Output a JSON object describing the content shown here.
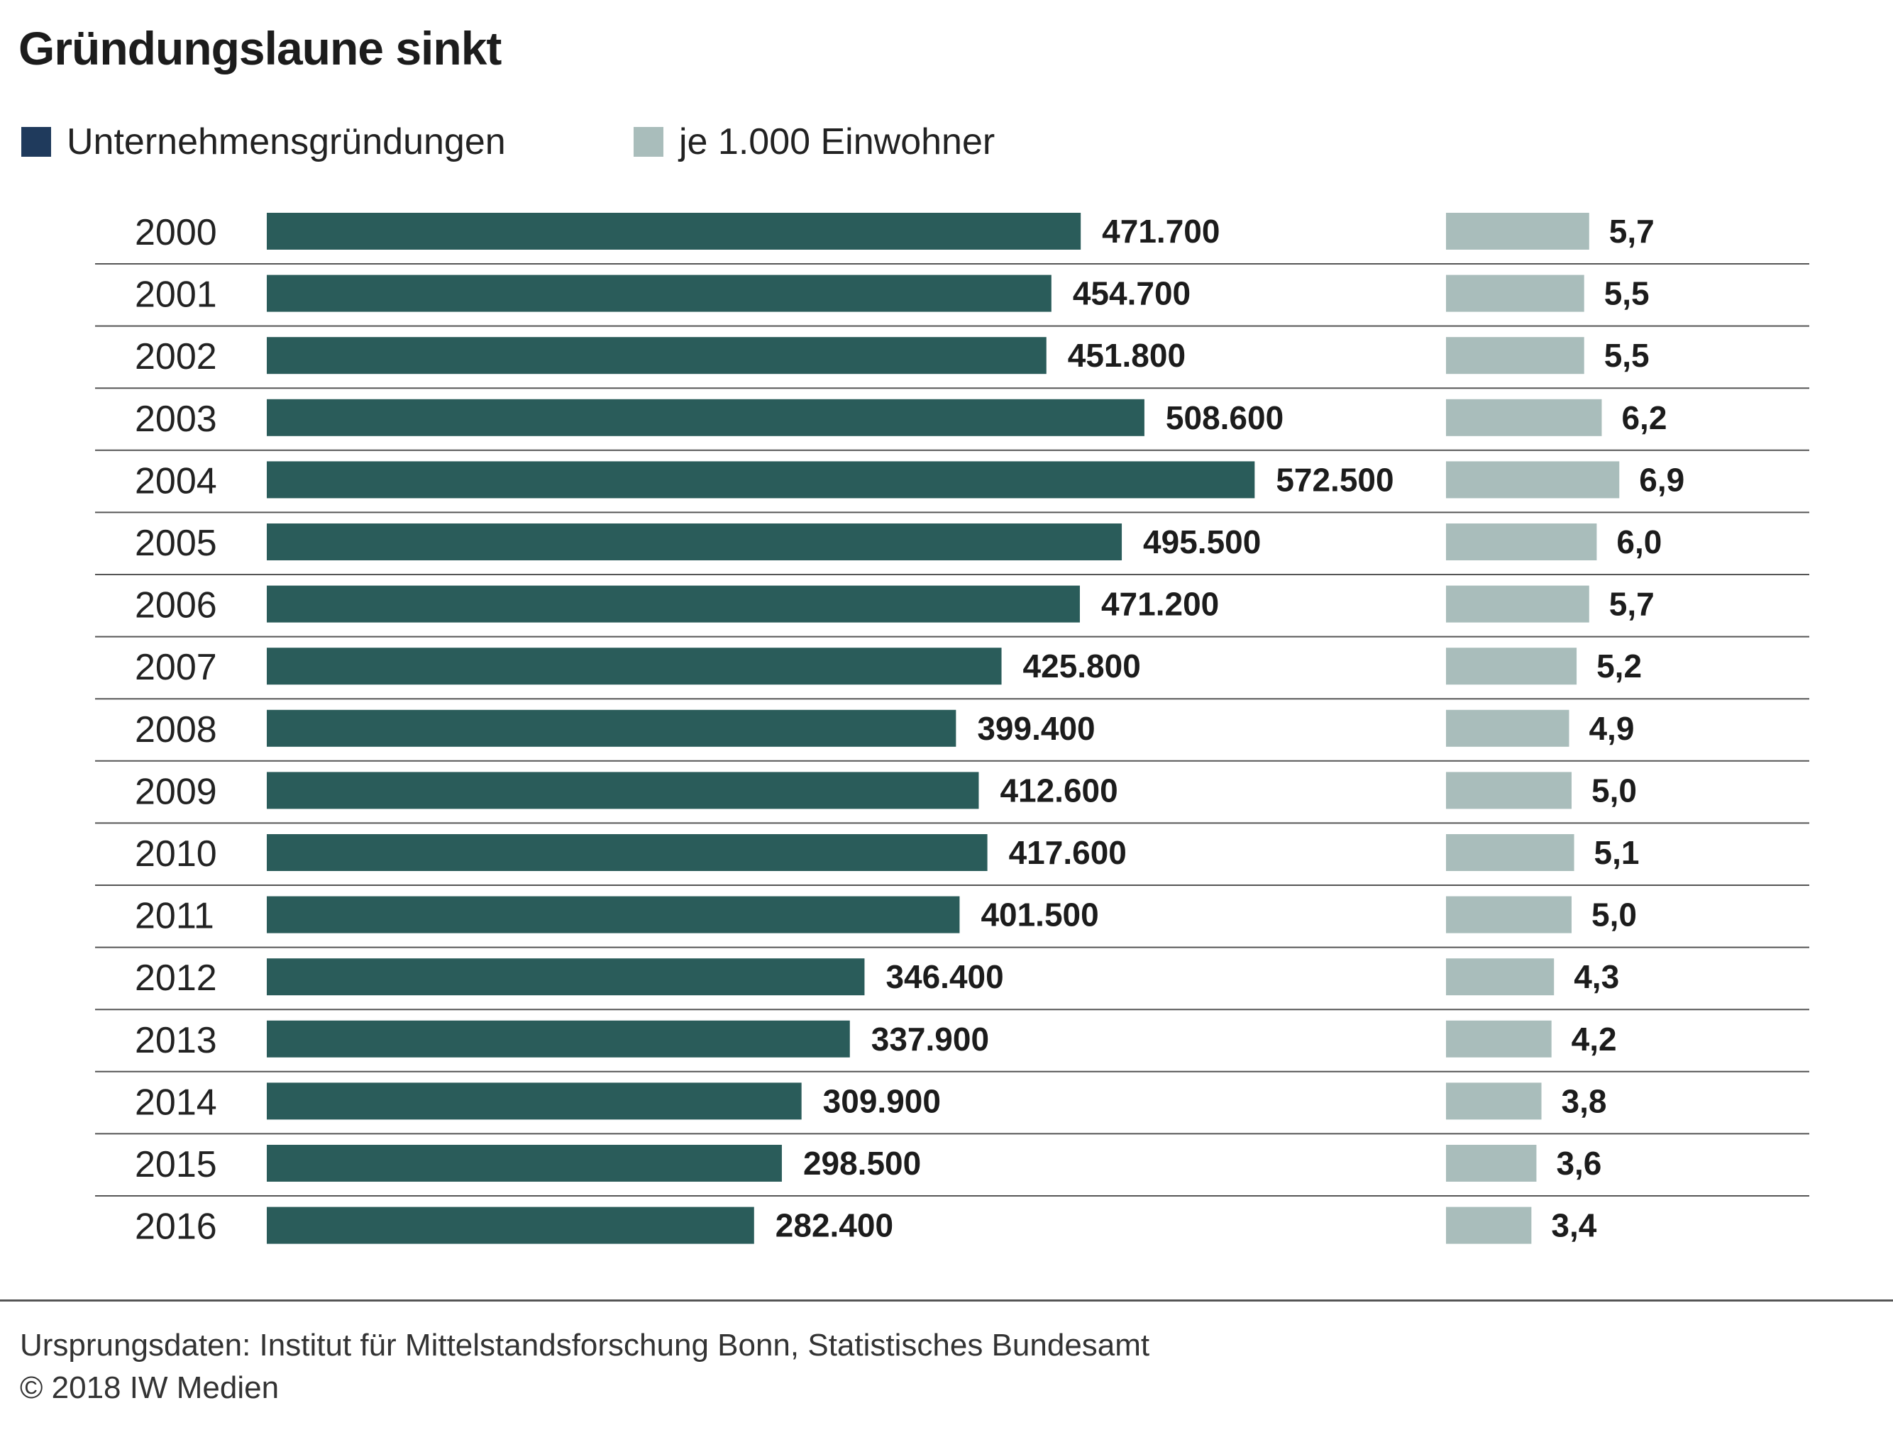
{
  "chart_data": {
    "type": "bar",
    "title": "Gründungslaune sinkt",
    "categories": [
      "2000",
      "2001",
      "2002",
      "2003",
      "2004",
      "2005",
      "2006",
      "2007",
      "2008",
      "2009",
      "2010",
      "2011",
      "2012",
      "2013",
      "2014",
      "2015",
      "2016"
    ],
    "series": [
      {
        "name": "Unternehmensgründungen",
        "color": "#2a5c5a",
        "values": [
          471700,
          454700,
          451800,
          508600,
          572500,
          495500,
          471200,
          425800,
          399400,
          412600,
          417600,
          401500,
          346400,
          337900,
          309900,
          298500,
          282400
        ],
        "labels": [
          "471.700",
          "454.700",
          "451.800",
          "508.600",
          "572.500",
          "495.500",
          "471.200",
          "425.800",
          "399.400",
          "412.600",
          "417.600",
          "401.500",
          "346.400",
          "337.900",
          "309.900",
          "298.500",
          "282.400"
        ]
      },
      {
        "name": "je 1.000 Einwohner",
        "color": "#a9bdbb",
        "values": [
          5.7,
          5.5,
          5.5,
          6.2,
          6.9,
          6.0,
          5.7,
          5.2,
          4.9,
          5.0,
          5.1,
          5.0,
          4.3,
          4.2,
          3.8,
          3.6,
          3.4
        ],
        "labels": [
          "5,7",
          "5,5",
          "5,5",
          "6,2",
          "6,9",
          "6,0",
          "5,7",
          "5,2",
          "4,9",
          "5,0",
          "5,1",
          "5,0",
          "4,3",
          "4,2",
          "3,8",
          "3,6",
          "3,4"
        ]
      }
    ],
    "orientation": "horizontal",
    "legend_position": "top-left"
  },
  "legend": {
    "item1": {
      "label": "Unternehmensgründungen",
      "color": "#1f3a5c"
    },
    "item2": {
      "label": "je 1.000 Einwohner",
      "color": "#a9bdbb"
    }
  },
  "footer": {
    "source": "Ursprungsdaten: Institut für Mittelstandsforschung Bonn, Statistisches Bundesamt",
    "copyright": "© 2018 IW Medien"
  }
}
